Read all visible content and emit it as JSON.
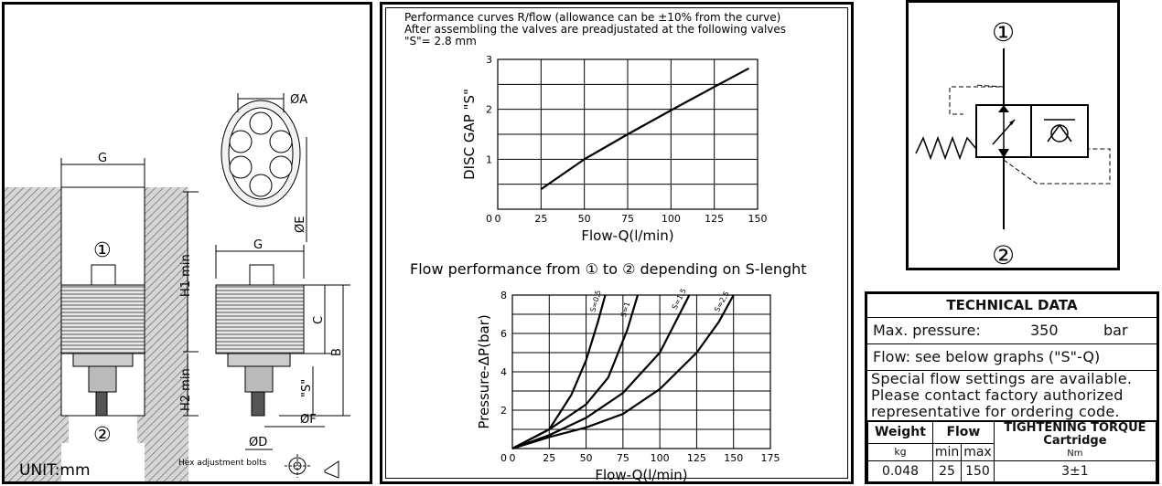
{
  "drawing": {
    "unit_label": "UNIT:mm",
    "hex_note": "Hex adjustment bolts",
    "dims": {
      "G_left": "G",
      "G_right": "G",
      "H1": "H1 min",
      "H2": "H2 min",
      "phiA": "ØA",
      "phiE": "ØE",
      "C": "C",
      "B": "B",
      "S": "\"S\"",
      "phiF": "ØF",
      "phiD": "ØD"
    },
    "port1": "①",
    "port2": "②"
  },
  "graphs": {
    "top_caption": [
      "Performance curves R/flow (allowance can be ±10% from the curve)",
      "After assembling the valves are preadjustated at the following valves",
      "\"S\"= 2.8 mm"
    ],
    "bottom_title": "Flow performance from ① to ② depending on S-lenght"
  },
  "chart_data": [
    {
      "type": "line",
      "xlabel": "Flow-Q(l/min)",
      "ylabel": "DISC GAP \"S\"",
      "xlim": [
        0,
        150
      ],
      "ylim": [
        0,
        3
      ],
      "x_ticks": [
        "0",
        "25",
        "50",
        "75",
        "100",
        "125",
        "150"
      ],
      "y_ticks": [
        "1",
        "2",
        "3"
      ],
      "grid": true,
      "series": [
        {
          "x": [
            25,
            50,
            75,
            100,
            125,
            145
          ],
          "y": [
            0.4,
            1.0,
            1.5,
            1.98,
            2.45,
            2.82
          ]
        }
      ]
    },
    {
      "type": "line",
      "xlabel": "Flow-Q(l/min)",
      "ylabel": "Pressure-ΔP(bar)",
      "xlim": [
        0,
        175
      ],
      "ylim": [
        0,
        8
      ],
      "x_ticks": [
        "0",
        "25",
        "50",
        "75",
        "100",
        "125",
        "150",
        "175"
      ],
      "y_ticks": [
        "2",
        "4",
        "6",
        "8"
      ],
      "grid": true,
      "series": [
        {
          "name": "S=0,5",
          "x": [
            0,
            25,
            40,
            50,
            58,
            63
          ],
          "y": [
            0,
            1.0,
            2.8,
            4.6,
            6.6,
            8.0
          ]
        },
        {
          "name": "S=1",
          "x": [
            0,
            25,
            50,
            65,
            78,
            85
          ],
          "y": [
            0,
            1.0,
            2.3,
            3.7,
            6.2,
            8.0
          ]
        },
        {
          "name": "S=1,5",
          "x": [
            0,
            25,
            50,
            75,
            100,
            112,
            120
          ],
          "y": [
            0,
            0.7,
            1.6,
            2.9,
            5.0,
            6.8,
            8.0
          ]
        },
        {
          "name": "S=2,5",
          "x": [
            0,
            25,
            50,
            75,
            100,
            125,
            140,
            150
          ],
          "y": [
            0,
            0.6,
            1.1,
            1.8,
            3.1,
            5.0,
            6.6,
            8.0
          ]
        }
      ]
    }
  ],
  "symbol": {
    "port1": "①",
    "port2": "②"
  },
  "tech": {
    "title": "TECHNICAL DATA",
    "max_pressure_label": "Max. pressure:",
    "max_pressure_value": "350",
    "max_pressure_unit": "bar",
    "flow_label": "Flow: see below graphs (\"S\"-Q)",
    "note_lines": [
      "Special flow settings are available.",
      "Please contact factory authorized",
      "representative for ordering code."
    ],
    "weight_label": "Weight",
    "weight_unit": "kg",
    "weight_value": "0.048",
    "flow_header": "Flow",
    "min_label": "min",
    "max_label": "max",
    "flow_min": "25",
    "flow_max": "150",
    "torque_label": "TIGHTENING TORQUE",
    "torque_sub": "Cartridge",
    "torque_unit": "Nm",
    "torque_value": "3±1"
  }
}
